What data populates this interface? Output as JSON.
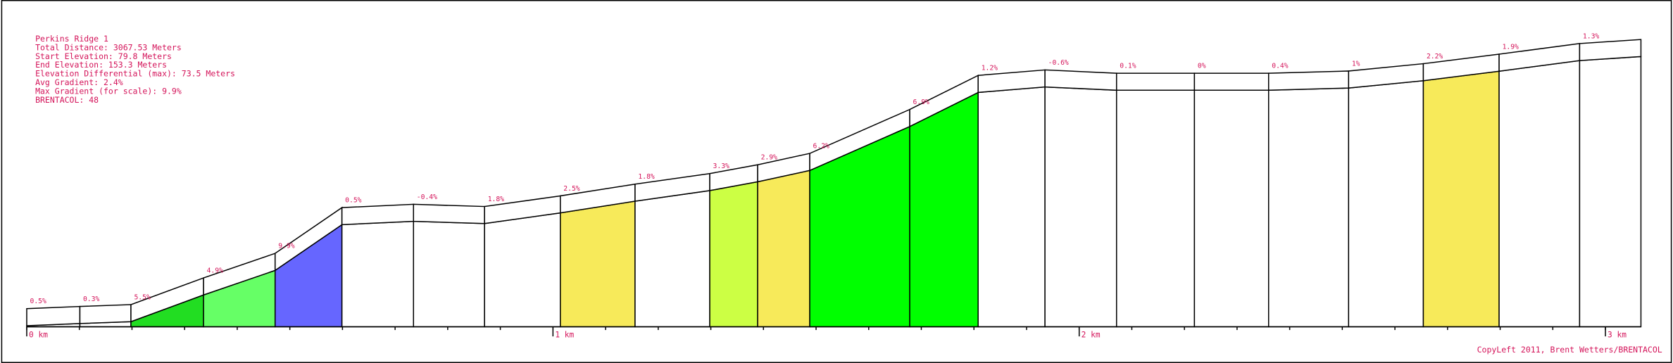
{
  "header": {
    "lines": [
      "Perkins Ridge 1",
      "Total Distance: 3067.53 Meters",
      "Start Elevation: 79.8 Meters",
      "End Elevation: 153.3 Meters",
      "Elevation Differential (max): 73.5 Meters",
      "Avg Gradient: 2.4%",
      "Max Gradient (for scale): 9.9%",
      "BRENTACOL: 48"
    ]
  },
  "footer": "CopyLeft 2011, Brent Wetters/BRENTACOL",
  "chart_data": {
    "type": "elevation-profile",
    "distances": [
      0,
      0.101,
      0.198,
      0.336,
      0.472,
      0.599,
      0.735,
      0.87,
      1.014,
      1.156,
      1.298,
      1.389,
      1.488,
      1.678,
      1.808,
      1.935,
      2.071,
      2.219,
      2.36,
      2.512,
      2.654,
      2.798,
      2.951,
      3.0675
    ],
    "elevations": [
      79.8,
      80.4,
      80.9,
      88.2,
      94.9,
      107.4,
      108.3,
      107.7,
      110.6,
      113.8,
      116.7,
      119.1,
      122.2,
      134.2,
      143.5,
      145.0,
      144.1,
      144.1,
      144.1,
      144.7,
      146.7,
      149.3,
      152.2,
      153.3
    ],
    "gradients": [
      0.5,
      0.3,
      5.5,
      4.9,
      9.9,
      0.5,
      -0.4,
      1.8,
      2.5,
      1.8,
      3.3,
      2.9,
      6.2,
      6.9,
      1.2,
      -0.6,
      0.1,
      0,
      0.4,
      1,
      2.2,
      1.9,
      1.3
    ],
    "value_labels": [
      "0.5%",
      "0.3%",
      "5.5%",
      "4.9%",
      "9.9%",
      "0.5%",
      "-0.4%",
      "1.8%",
      "2.5%",
      "1.8%",
      "3.3%",
      "2.9%",
      "6.2%",
      "6.9%",
      "1.2%",
      "-0.6%",
      "0.1%",
      "0%",
      "0.4%",
      "1%",
      "2.2%",
      "1.9%",
      "1.3%"
    ],
    "colors": [
      "#ffffff",
      "#ffffff",
      "#22dd22",
      "#66ff66",
      "#6666ff",
      "#ffffff",
      "#ffffff",
      "#ffffff",
      "#f7ea5a",
      "#ffffff",
      "#ccff44",
      "#f7ea5a",
      "#00ff00",
      "#00ff00",
      "#ffffff",
      "#ffffff",
      "#ffffff",
      "#ffffff",
      "#ffffff",
      "#ffffff",
      "#f7ea5a",
      "#ffffff",
      "#ffffff"
    ],
    "xlim": [
      0,
      3.0675
    ],
    "ylim": [
      79.5,
      155
    ],
    "xticks": [
      {
        "value": 0,
        "label": "0 km"
      },
      {
        "value": 1,
        "label": "1 km"
      },
      {
        "value": 2,
        "label": "2 km"
      },
      {
        "value": 3,
        "label": "3 km"
      }
    ],
    "minor_tick_step": 0.1
  }
}
